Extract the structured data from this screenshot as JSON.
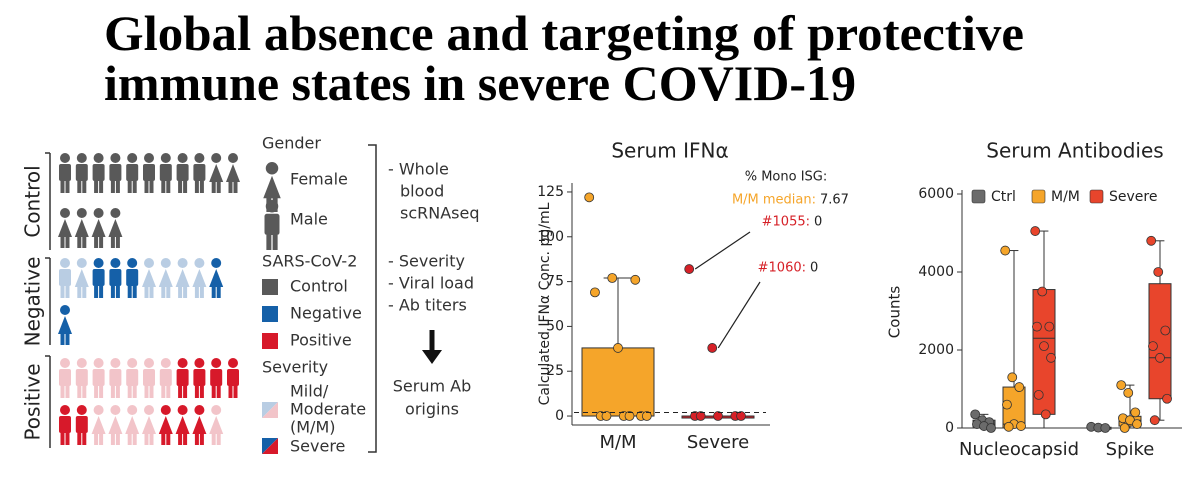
{
  "header": {
    "title": [
      "Global absence and targeting of protective",
      "immune states in severe COVID-19"
    ]
  },
  "cohort": {
    "groups": [
      "Control",
      "Negative",
      "Positive"
    ],
    "legend": {
      "gender": {
        "title": "Gender",
        "items": [
          "Female",
          "Male"
        ]
      },
      "sars": {
        "title": "SARS-CoV-2",
        "items": [
          "Control",
          "Negative",
          "Positive"
        ],
        "colors": [
          "#595959",
          "#1560a8",
          "#d7192a"
        ]
      },
      "severity": {
        "title": "Severity",
        "items": [
          [
            "Mild/",
            "Moderate",
            "(M/M)"
          ],
          "Severe"
        ]
      }
    },
    "assays": {
      "first": [
        "- Whole",
        "blood",
        "scRNAseq"
      ],
      "second": [
        "- Severity",
        "- Viral load",
        "- Ab titers"
      ],
      "result": [
        "Serum Ab",
        "origins"
      ]
    }
  },
  "chart_data": [
    {
      "type": "box",
      "title": "Serum IFNα",
      "ylabel": "Calculated IFNα Conc. pg/mL",
      "categories": [
        "M/M",
        "Severe"
      ],
      "ylim": [
        -5,
        130
      ],
      "yticks": [
        0,
        25,
        50,
        75,
        100,
        125
      ],
      "boxes": [
        {
          "color": "#f5a52a",
          "whisker_low": 0,
          "q1": 0,
          "median": 0,
          "q3": 38,
          "whisker_high": 77,
          "points": [
            122,
            77,
            76,
            69,
            38,
            0,
            0,
            0,
            0,
            0,
            0
          ]
        },
        {
          "color": "#d62027",
          "whisker_low": 0,
          "q1": 0,
          "median": 0,
          "q3": 0,
          "whisker_high": 0,
          "points": [
            82,
            38,
            0,
            0,
            0,
            0,
            0
          ]
        }
      ],
      "reference_line": 2,
      "annotations": {
        "header": "% Mono ISG:",
        "median": {
          "label": "M/M median:",
          "value": 7.67
        },
        "callouts": [
          {
            "label": "#1055:",
            "value": 0
          },
          {
            "label": "#1060:",
            "value": 0
          }
        ]
      }
    },
    {
      "type": "box",
      "title": "Serum Antibodies",
      "ylabel": "Counts",
      "categories": [
        "Nucleocapsid",
        "Spike"
      ],
      "ylim": [
        0,
        6000
      ],
      "yticks": [
        0,
        2000,
        4000,
        6000
      ],
      "legend": "top-left",
      "series": [
        {
          "name": "Ctrl",
          "color": "#6b6b6b",
          "boxes": [
            {
              "whisker_low": 0,
              "q1": 30,
              "median": 100,
              "q3": 200,
              "whisker_high": 350,
              "points": [
                350,
                200,
                150,
                100,
                50,
                0
              ]
            },
            {
              "whisker_low": 0,
              "q1": 0,
              "median": 10,
              "q3": 20,
              "whisker_high": 30,
              "points": [
                30,
                10,
                0
              ]
            }
          ]
        },
        {
          "name": "M/M",
          "color": "#f5a52a",
          "boxes": [
            {
              "whisker_low": 0,
              "q1": 0,
              "median": 100,
              "q3": 1050,
              "whisker_high": 4550,
              "points": [
                4550,
                1300,
                1050,
                600,
                100,
                50,
                30
              ]
            },
            {
              "whisker_low": 0,
              "q1": 50,
              "median": 200,
              "q3": 300,
              "whisker_high": 1100,
              "points": [
                1100,
                900,
                400,
                250,
                200,
                100,
                0
              ]
            }
          ]
        },
        {
          "name": "Severe",
          "color": "#e8452c",
          "boxes": [
            {
              "whisker_low": 0,
              "q1": 350,
              "median": 2300,
              "q3": 3550,
              "whisker_high": 5050,
              "points": [
                5050,
                3500,
                2600,
                2600,
                2100,
                1800,
                850,
                350
              ]
            },
            {
              "whisker_low": 200,
              "q1": 750,
              "median": 1800,
              "q3": 3700,
              "whisker_high": 4800,
              "points": [
                4800,
                4000,
                2500,
                2100,
                1800,
                750,
                200
              ]
            }
          ]
        }
      ]
    }
  ]
}
